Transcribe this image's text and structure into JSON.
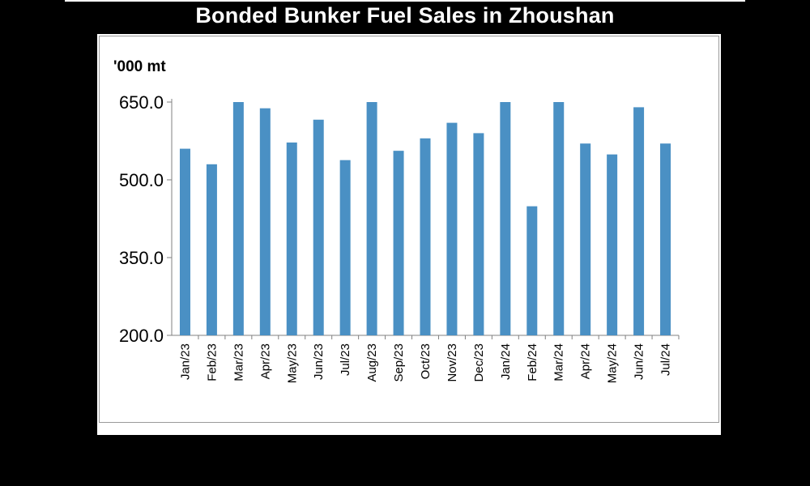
{
  "chart_data": {
    "type": "bar",
    "title": "Bonded Bunker Fuel Sales in Zhoushan",
    "ylabel": "'000 mt",
    "xlabel": "",
    "ylim": [
      200,
      650
    ],
    "yticks": [
      "650.0",
      "500.0",
      "350.0",
      "200.0"
    ],
    "ytick_values": [
      650,
      500,
      350,
      200
    ],
    "categories": [
      "Jan/23",
      "Feb/23",
      "Mar/23",
      "Apr/23",
      "May/23",
      "Jun/23",
      "Jul/23",
      "Aug/23",
      "Sep/23",
      "Oct/23",
      "Nov/23",
      "Dec/23",
      "Jan/24",
      "Feb/24",
      "Mar/24",
      "Apr/24",
      "May/24",
      "Jun/24",
      "Jul/24"
    ],
    "values": [
      560,
      530,
      650,
      638,
      572,
      616,
      538,
      650,
      556,
      580,
      610,
      590,
      650,
      449,
      650,
      570,
      549,
      640,
      570
    ],
    "bar_color": "#4a90c4",
    "grid": false,
    "legend": "none"
  }
}
